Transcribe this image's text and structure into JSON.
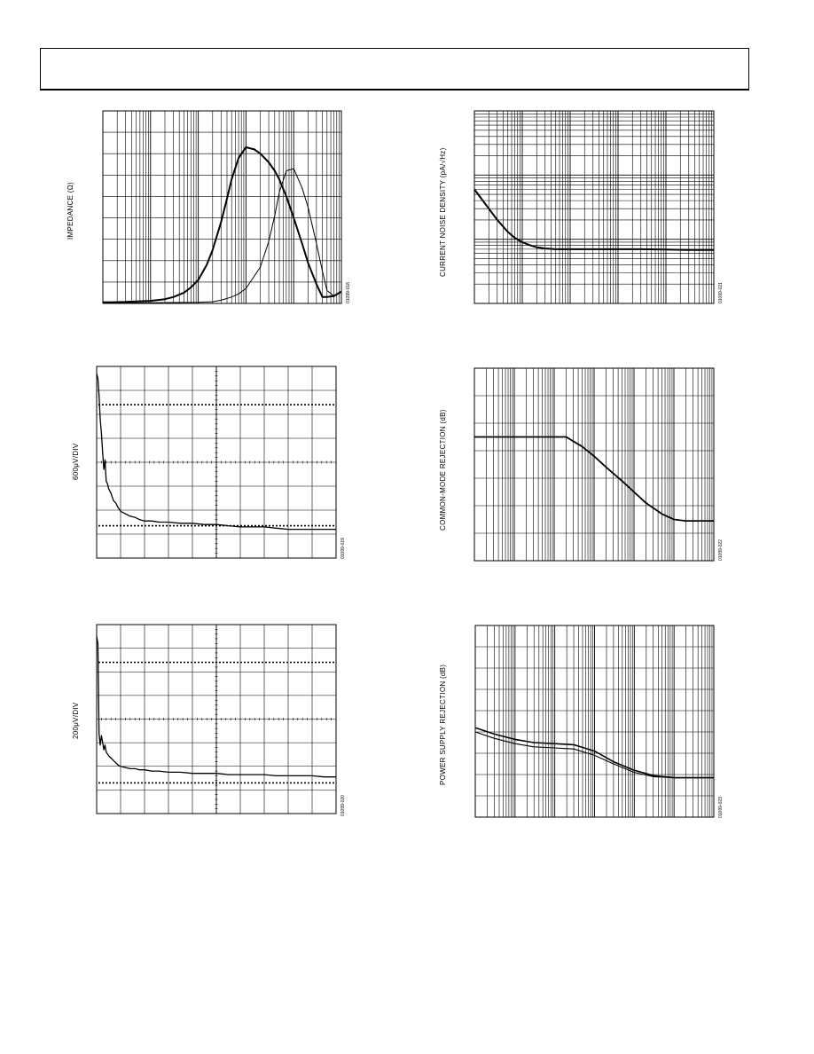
{
  "chart_data": [
    {
      "id": "impedance",
      "type": "line",
      "title": "",
      "xlabel": "",
      "ylabel": "IMPEDANCE (Ω)",
      "xscale": "log",
      "xlim": [
        10,
        1000000
      ],
      "ylim": [
        0,
        9
      ],
      "figure_id": "01099-018",
      "grid": true,
      "series": [
        {
          "x": [
            10,
            30,
            100,
            200,
            300,
            500,
            700,
            1000,
            1500,
            2000,
            3000,
            4000,
            5000,
            7000,
            10000,
            15000,
            20000,
            30000,
            40000,
            50000,
            70000,
            100000,
            150000,
            200000,
            300000,
            400000,
            500000,
            700000,
            1000000
          ],
          "y": [
            0.05,
            0.07,
            0.12,
            0.2,
            0.3,
            0.5,
            0.75,
            1.1,
            1.8,
            2.5,
            3.8,
            4.9,
            5.8,
            6.8,
            7.3,
            7.2,
            7.0,
            6.6,
            6.2,
            5.8,
            5.0,
            4.0,
            2.8,
            1.9,
            0.9,
            0.3,
            0.3,
            0.35,
            0.55
          ],
          "stroke": 2
        },
        {
          "x": [
            10,
            100,
            1000,
            2000,
            3000,
            5000,
            7000,
            10000,
            20000,
            30000,
            40000,
            50000,
            70000,
            100000,
            150000,
            200000,
            300000,
            400000,
            500000,
            700000,
            1000000
          ],
          "y": [
            0.02,
            0.03,
            0.05,
            0.08,
            0.15,
            0.3,
            0.45,
            0.7,
            1.7,
            2.9,
            4.1,
            5.2,
            6.2,
            6.3,
            5.4,
            4.5,
            2.8,
            1.5,
            0.6,
            0.35,
            0.55
          ],
          "stroke": 1
        }
      ]
    },
    {
      "id": "current_noise",
      "type": "line",
      "title": "",
      "xlabel": "",
      "ylabel": "CURRENT NOISE DENSITY (pA/√Hz)",
      "xscale": "log",
      "xlim": [
        1,
        100000
      ],
      "yscale": "log",
      "ylim": [
        0.1,
        100
      ],
      "figure_id": "01099-021",
      "grid": true,
      "series": [
        {
          "x": [
            1,
            1.5,
            2,
            3,
            5,
            7,
            10,
            15,
            20,
            30,
            50,
            100,
            300,
            1000,
            3000,
            10000,
            30000,
            100000
          ],
          "y": [
            6,
            4,
            3,
            2,
            1.3,
            1.05,
            0.9,
            0.8,
            0.75,
            0.72,
            0.7,
            0.7,
            0.7,
            0.7,
            0.7,
            0.69,
            0.68,
            0.68
          ],
          "stroke": 2
        }
      ]
    },
    {
      "id": "waveform_600",
      "type": "line",
      "title": "",
      "xlabel": "",
      "ylabel": "600μV/DIV",
      "xlim": [
        0,
        10
      ],
      "ylim": [
        0,
        8
      ],
      "figure_id": "01099-019",
      "grid": true,
      "dotted_levels": [
        6.4,
        1.35
      ],
      "series": [
        {
          "x": [
            0,
            0.05,
            0.1,
            0.15,
            0.2,
            0.25,
            0.3,
            0.35,
            0.4,
            0.45,
            0.5,
            0.6,
            0.7,
            0.8,
            0.9,
            1.0,
            1.2,
            1.4,
            1.6,
            1.8,
            2.0,
            2.3,
            2.6,
            3.0,
            3.5,
            4.0,
            4.5,
            5.0,
            5.5,
            6.0,
            6.5,
            7.0,
            7.5,
            8.0,
            8.5,
            9.0,
            9.5,
            10.0
          ],
          "y": [
            7.7,
            7.5,
            6.8,
            5.8,
            5.2,
            4.4,
            3.7,
            4.1,
            3.2,
            3.1,
            2.9,
            2.7,
            2.4,
            2.3,
            2.1,
            1.95,
            1.85,
            1.75,
            1.7,
            1.6,
            1.55,
            1.55,
            1.5,
            1.5,
            1.45,
            1.45,
            1.4,
            1.4,
            1.35,
            1.3,
            1.3,
            1.3,
            1.25,
            1.2,
            1.2,
            1.2,
            1.2,
            1.2
          ],
          "stroke": 1.3
        }
      ]
    },
    {
      "id": "cmrr",
      "type": "line",
      "title": "",
      "xlabel": "",
      "ylabel": "COMMON-MODE REJECTION (dB)",
      "xscale": "log",
      "xlim": [
        1,
        1000000
      ],
      "ylim": [
        0,
        7
      ],
      "figure_id": "01099-022",
      "grid": true,
      "series": [
        {
          "x": [
            1,
            10,
            100,
            200,
            500,
            1000,
            2000,
            5000,
            10000,
            20000,
            50000,
            100000,
            200000,
            500000,
            1000000
          ],
          "y": [
            4.5,
            4.5,
            4.5,
            4.5,
            4.15,
            3.8,
            3.4,
            2.9,
            2.5,
            2.1,
            1.7,
            1.5,
            1.45,
            1.45,
            1.45
          ],
          "stroke": 1.8
        }
      ]
    },
    {
      "id": "waveform_200",
      "type": "line",
      "title": "",
      "xlabel": "",
      "ylabel": "200μV/DIV",
      "xlim": [
        0,
        10
      ],
      "ylim": [
        0,
        8
      ],
      "figure_id": "01099-020",
      "grid": true,
      "dotted_levels": [
        6.4,
        1.3
      ],
      "series": [
        {
          "x": [
            0,
            0.05,
            0.1,
            0.15,
            0.2,
            0.25,
            0.3,
            0.35,
            0.4,
            0.5,
            0.6,
            0.7,
            0.8,
            0.9,
            1.0,
            1.2,
            1.4,
            1.6,
            1.8,
            2.0,
            2.3,
            2.6,
            3.0,
            3.5,
            4.0,
            4.5,
            5.0,
            5.5,
            6.0,
            6.5,
            7.0,
            7.5,
            8.0,
            8.5,
            9.0,
            9.5,
            10.0
          ],
          "y": [
            7.5,
            7.2,
            3.4,
            2.9,
            3.3,
            3.0,
            2.7,
            2.9,
            2.6,
            2.45,
            2.35,
            2.25,
            2.15,
            2.05,
            2.0,
            1.95,
            1.9,
            1.9,
            1.85,
            1.85,
            1.8,
            1.8,
            1.75,
            1.75,
            1.7,
            1.7,
            1.7,
            1.65,
            1.65,
            1.65,
            1.65,
            1.6,
            1.6,
            1.6,
            1.6,
            1.55,
            1.55
          ],
          "stroke": 1.3
        }
      ]
    },
    {
      "id": "psrr",
      "type": "line",
      "title": "",
      "xlabel": "",
      "ylabel": "POWER SUPPLY REJECTION (dB)",
      "xscale": "log",
      "xlim": [
        1,
        1000000
      ],
      "ylim": [
        0,
        9
      ],
      "figure_id": "01099-023",
      "grid": true,
      "series": [
        {
          "x": [
            1,
            3,
            10,
            30,
            100,
            300,
            1000,
            3000,
            10000,
            30000,
            100000,
            300000,
            1000000
          ],
          "y": [
            4.2,
            3.9,
            3.65,
            3.5,
            3.45,
            3.4,
            3.1,
            2.6,
            2.2,
            1.95,
            1.85,
            1.85,
            1.85
          ],
          "stroke": 1.6
        },
        {
          "x": [
            1,
            3,
            10,
            30,
            100,
            300,
            1000,
            3000,
            10000,
            30000,
            100000,
            300000,
            1000000
          ],
          "y": [
            4.0,
            3.7,
            3.45,
            3.3,
            3.25,
            3.2,
            2.9,
            2.5,
            2.1,
            1.9,
            1.85,
            1.85,
            1.85
          ],
          "stroke": 1.1
        }
      ]
    }
  ]
}
